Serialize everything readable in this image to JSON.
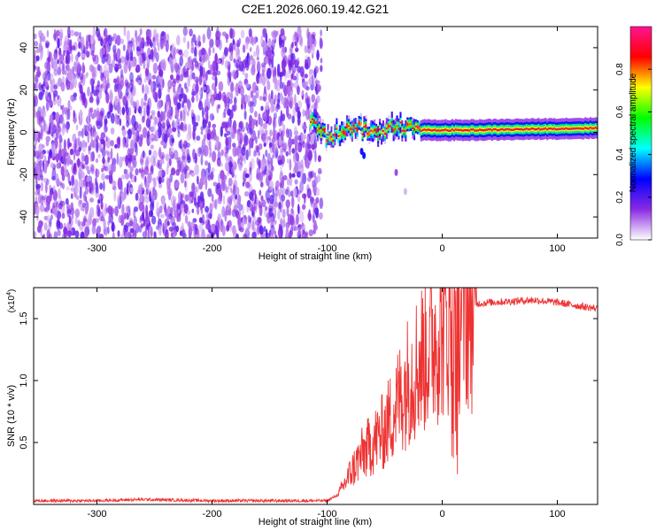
{
  "title": "C2E1.2026.060.19.42.G21",
  "chart_data": [
    {
      "type": "heatmap",
      "xlabel": "Height of straight line (km)",
      "ylabel": "Frequency (Hz)",
      "xlim": [
        -355,
        135
      ],
      "ylim": [
        -50,
        50
      ],
      "x_ticks": [
        -300,
        -200,
        -100,
        0,
        100
      ],
      "x_tick_labels": [
        "-300",
        "-200",
        "-100",
        "0",
        "100"
      ],
      "y_ticks": [
        -40,
        -20,
        0,
        20,
        40
      ],
      "y_tick_labels": [
        "-40",
        "-20",
        "0",
        "20",
        "40"
      ],
      "colorbar": {
        "label": "Normalized spectral amplitude",
        "range": [
          0,
          1
        ],
        "ticks": [
          0.0,
          0.2,
          0.4,
          0.6,
          0.8
        ],
        "tick_labels": [
          "0.0",
          "0.2",
          "0.4",
          "0.6",
          "0.8"
        ],
        "colormap": [
          "#ffffff",
          "#8a2be2",
          "#0000ff",
          "#00ffff",
          "#00ff00",
          "#ffff00",
          "#ff0000",
          "#ff1493"
        ]
      },
      "regions": [
        {
          "x_range": [
            -355,
            -105
          ],
          "frequency_range": [
            -50,
            48
          ],
          "amplitude": [
            0.05,
            0.2
          ]
        },
        {
          "x_range": [
            -115,
            135
          ],
          "frequency_center": [
            [
              -115,
              5
            ],
            [
              -100,
              -3
            ],
            [
              -80,
              3
            ],
            [
              -60,
              0
            ],
            [
              -40,
              3
            ],
            [
              -20,
              1
            ],
            [
              0,
              1
            ],
            [
              20,
              1
            ],
            [
              135,
              2
            ]
          ],
          "amplitude": [
            0.3,
            0.95
          ]
        }
      ]
    },
    {
      "type": "line",
      "xlabel": "Height of straight line (km)",
      "ylabel": "SNR (10 * v/v)",
      "y_multiplier": "(x10",
      "y_multiplier_exp": "4",
      "y_multiplier_close": ")",
      "xlim": [
        -355,
        135
      ],
      "ylim": [
        0,
        1.75
      ],
      "x_ticks": [
        -300,
        -200,
        -100,
        0,
        100
      ],
      "x_tick_labels": [
        "-300",
        "-200",
        "-100",
        "0",
        "100"
      ],
      "y_ticks": [
        0.5,
        1.0,
        1.5
      ],
      "y_tick_labels": [
        "0.5",
        "1.0",
        "1.5"
      ],
      "color": "#ee3333",
      "series": [
        {
          "x": [
            -355,
            -300,
            -260,
            -200,
            -150,
            -100,
            -90,
            -80,
            -70,
            -60,
            -50,
            -40,
            -30,
            -20,
            -10,
            0,
            10,
            20,
            30,
            40,
            60,
            80,
            100,
            120,
            135
          ],
          "y": [
            0.03,
            0.03,
            0.04,
            0.03,
            0.03,
            0.03,
            0.08,
            0.25,
            0.4,
            0.5,
            0.6,
            0.8,
            1.0,
            1.15,
            1.3,
            1.45,
            1.55,
            1.6,
            1.62,
            1.63,
            1.64,
            1.65,
            1.63,
            1.6,
            1.58
          ]
        }
      ]
    }
  ]
}
